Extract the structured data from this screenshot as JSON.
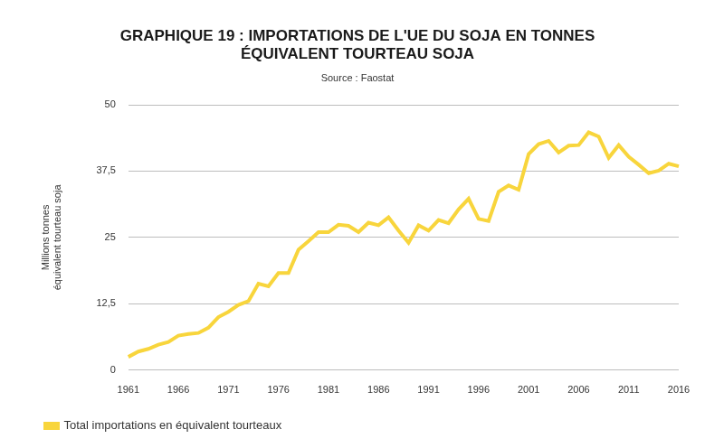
{
  "chart_data": {
    "type": "line",
    "title": [
      "GRAPHIQUE 19 : IMPORTATIONS DE L'UE DU SOJA EN TONNES",
      "ÉQUIVALENT TOURTEAU SOJA"
    ],
    "subtitle": "Source : Faostat",
    "y_label": [
      "Millions tonnes",
      "équivalent tourteau soja"
    ],
    "categories": [
      "1961",
      null,
      null,
      null,
      null,
      "1966",
      null,
      null,
      null,
      null,
      "1971",
      null,
      null,
      null,
      null,
      "1976",
      null,
      null,
      null,
      null,
      "1981",
      null,
      null,
      null,
      null,
      "1986",
      null,
      null,
      null,
      null,
      "1991",
      null,
      null,
      null,
      null,
      "1996",
      null,
      null,
      null,
      null,
      "2001",
      null,
      null,
      null,
      null,
      "2006",
      null,
      null,
      null,
      null,
      "2011",
      null,
      null,
      null,
      null,
      "2016"
    ],
    "series": [
      {
        "name": "Total importations en équivalent tourteaux",
        "color": "#f8d53c",
        "values": [
          2.5,
          3.5,
          4,
          4.8,
          5.3,
          6.5,
          6.8,
          7,
          8,
          10,
          11,
          12.3,
          13,
          16.3,
          15.8,
          18.3,
          18.3,
          22.7,
          24.3,
          26,
          26,
          27.4,
          27.2,
          26,
          27.8,
          27.3,
          28.8,
          26.3,
          24,
          27.3,
          26.3,
          28.3,
          27.7,
          30.3,
          32.3,
          28.5,
          28.1,
          33.6,
          34.8,
          34,
          40.7,
          42.6,
          43.2,
          41,
          42.3,
          42.4,
          44.8,
          44,
          40,
          42.4,
          40.2,
          38.7,
          37.1,
          37.6,
          38.9,
          38.4
        ]
      }
    ],
    "ylim": [
      0,
      50
    ],
    "yticks": [
      0,
      {
        "value": 12.5,
        "label": "12,5"
      },
      25,
      {
        "value": 37.5,
        "label": "37,5"
      },
      50
    ],
    "grid": true,
    "legend": "bottom"
  }
}
